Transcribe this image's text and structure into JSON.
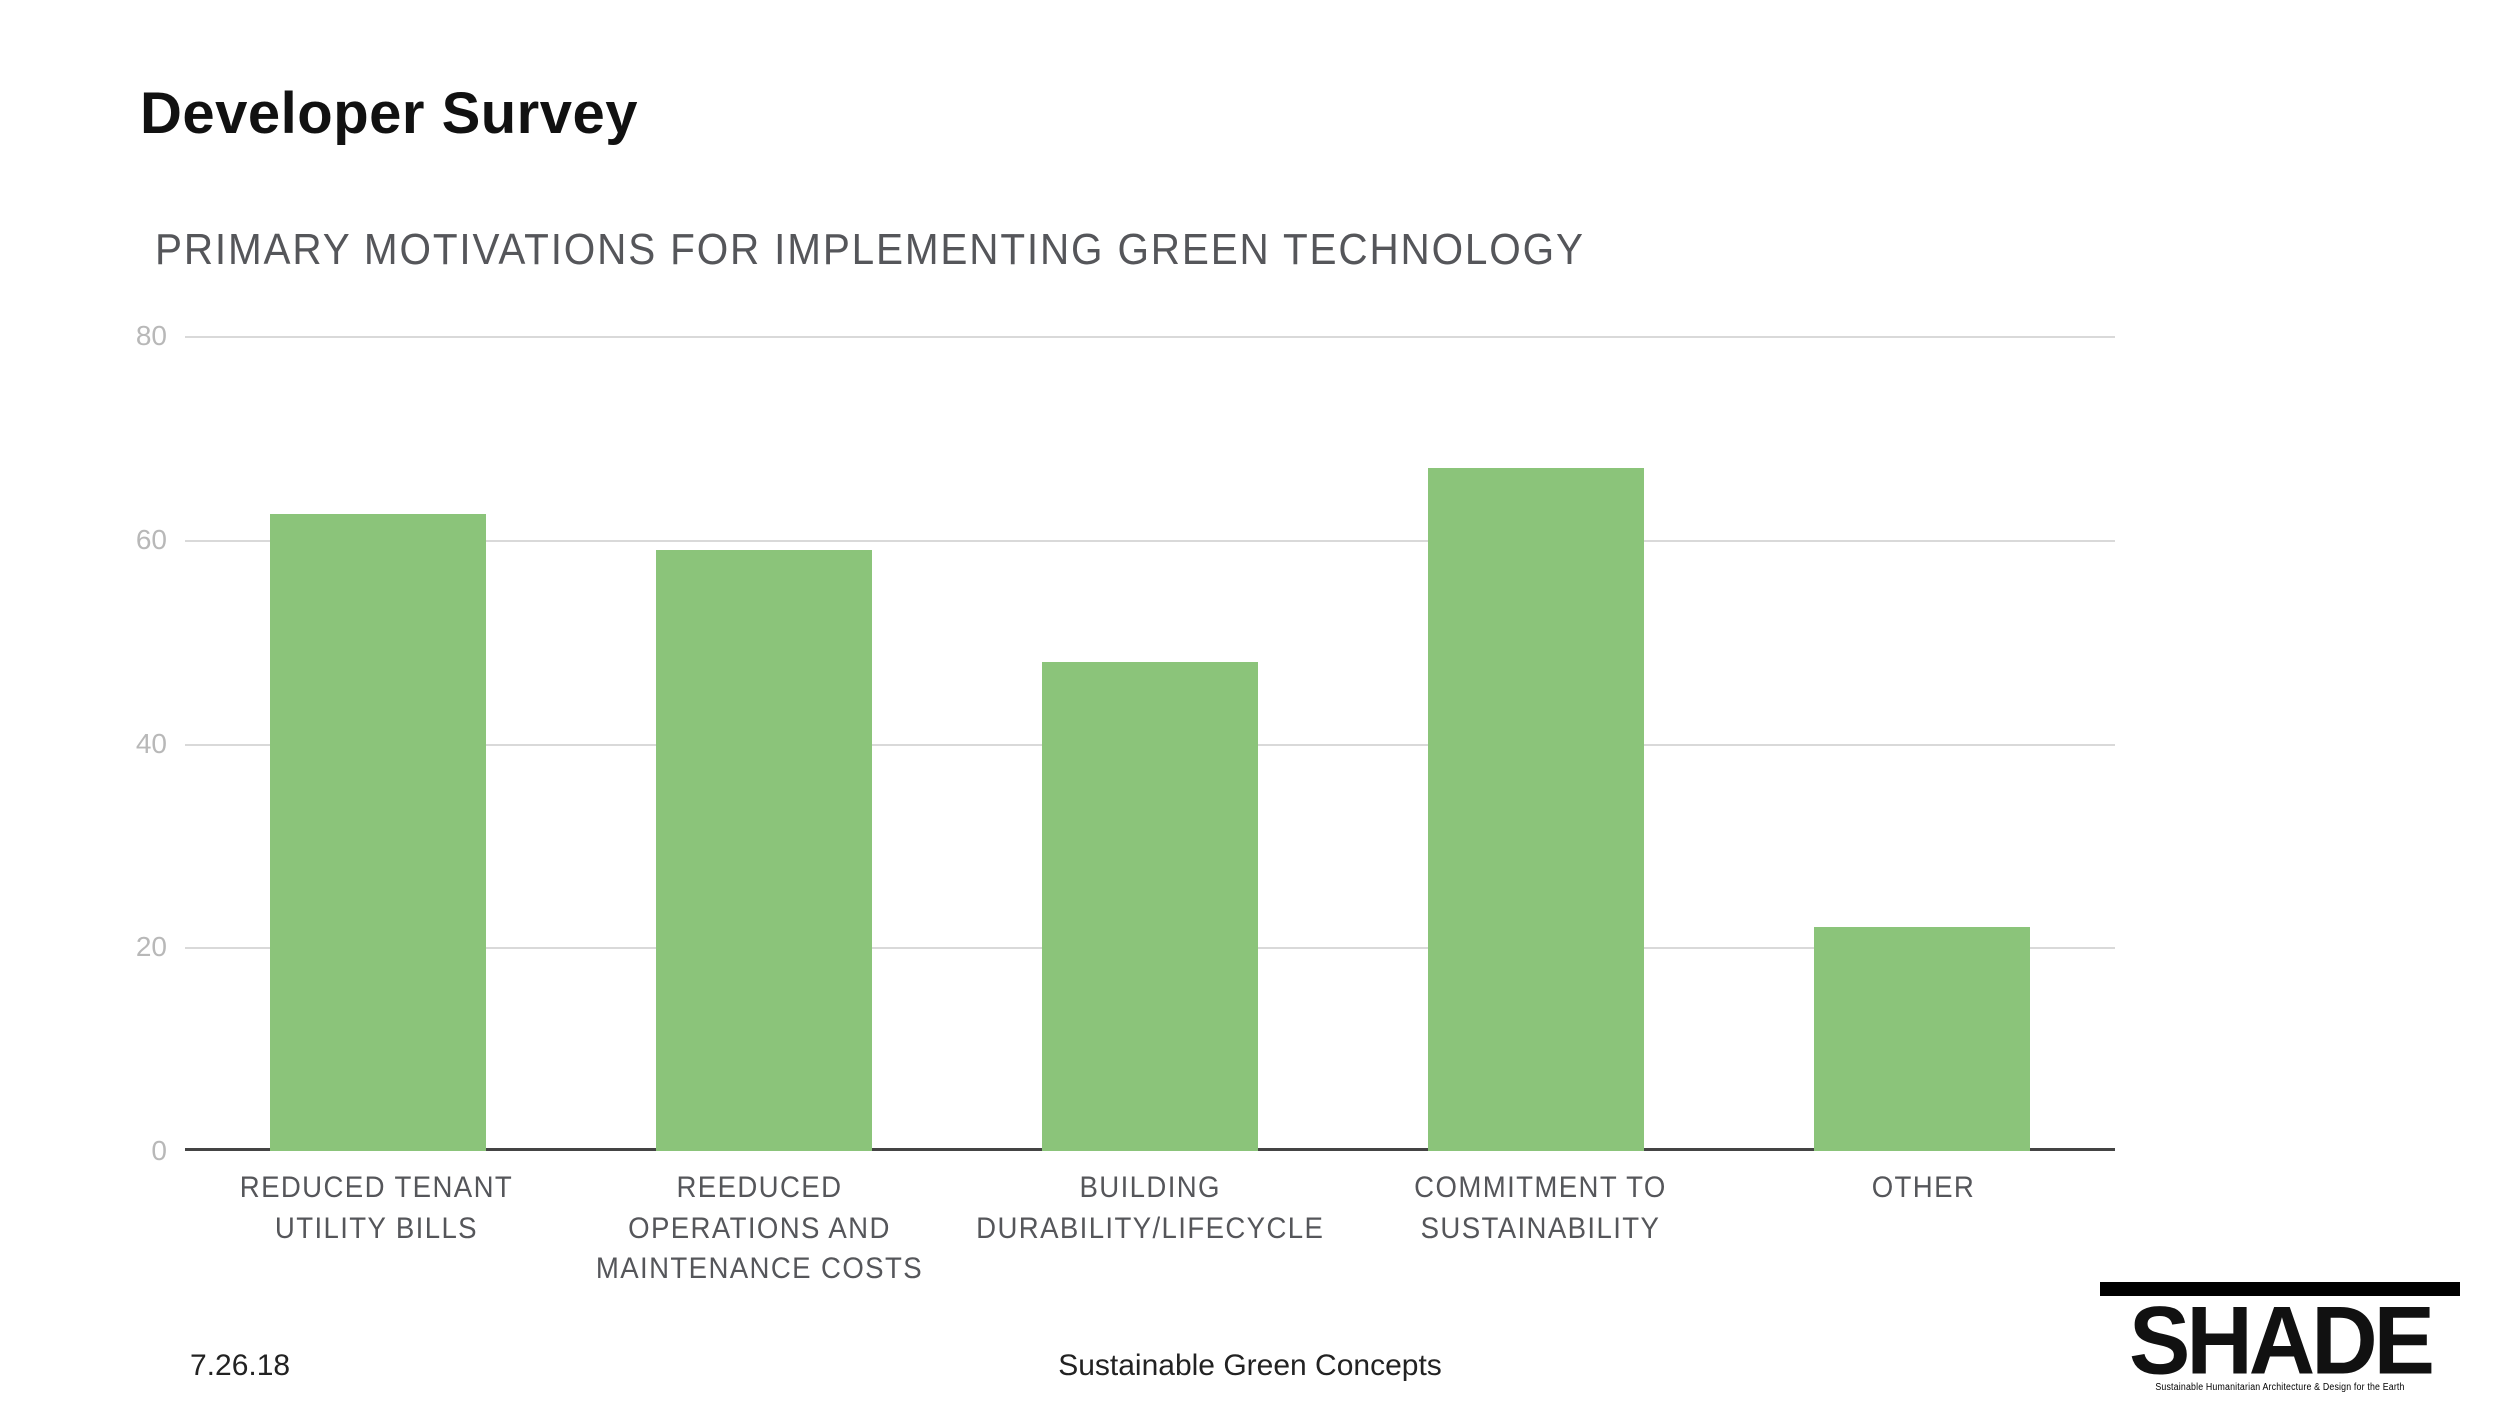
{
  "title": "Developer Survey",
  "subtitle": "PRIMARY MOTIVATIONS FOR IMPLEMENTING GREEN TECHNOLOGY",
  "chart": {
    "type": "bar",
    "categories": [
      "REDUCED TENANT UTILITY BILLS",
      "REEDUCED OPERATIONS AND MAINTENANCE COSTS",
      "BUILDING DURABILITY/LIFECYCLE",
      "COMMITMENT TO SUSTAINABILITY",
      "OTHER"
    ],
    "values": [
      62.5,
      59,
      48,
      67,
      22
    ],
    "bar_color": "#8bc47a",
    "ylim": [
      0,
      80
    ],
    "ytick_step": 20,
    "yticks": [
      0,
      20,
      40,
      60,
      80
    ],
    "grid_color": "#d9d9d9",
    "axis_color": "#444444",
    "ytick_color": "#b8b8b8",
    "background_color": "#ffffff",
    "bar_width_ratio": 0.56,
    "title_fontsize": 44,
    "label_fontsize": 30,
    "category_label_color": "#55565a"
  },
  "footer": {
    "date": "7.26.18",
    "center": "Sustainable Green Concepts"
  },
  "logo": {
    "text": "SHADE",
    "tagline": "Sustainable Humanitarian Architecture & Design for the Earth"
  }
}
